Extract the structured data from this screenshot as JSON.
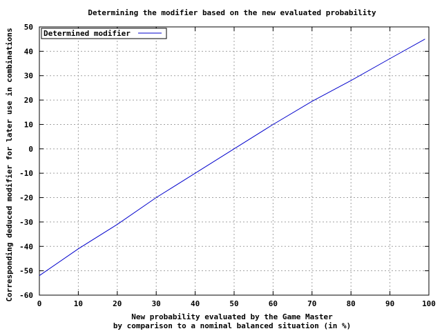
{
  "chart_data": {
    "type": "line",
    "title": "Determining the modifier based on the new evaluated probability",
    "xlabel_lines": [
      "New probability evaluated by the Game Master",
      "by comparison to a nominal balanced situation (in %)"
    ],
    "ylabel": "Corresponding deduced modifier for later use in combinations",
    "xlim": [
      0,
      100
    ],
    "ylim": [
      -60,
      50
    ],
    "x_ticks": [
      0,
      10,
      20,
      30,
      40,
      50,
      60,
      70,
      80,
      90,
      100
    ],
    "y_ticks": [
      -60,
      -50,
      -40,
      -30,
      -20,
      -10,
      0,
      10,
      20,
      30,
      40,
      50
    ],
    "grid": true,
    "legend_position": "top-left",
    "series": [
      {
        "name": "Determined modifier",
        "color": "#0000cc",
        "x": [
          0,
          10,
          20,
          30,
          40,
          50,
          60,
          70,
          80,
          90,
          99
        ],
        "y": [
          -52,
          -41,
          -31,
          -20,
          -10,
          0,
          10,
          19.5,
          28,
          37,
          45
        ]
      }
    ]
  }
}
